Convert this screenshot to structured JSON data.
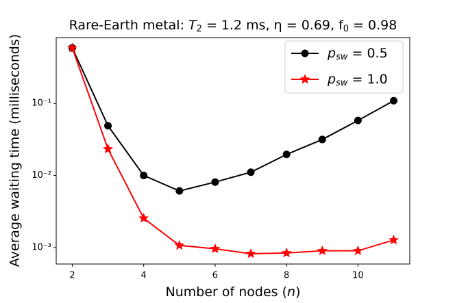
{
  "chart_data": {
    "type": "line",
    "title": [
      "Rare-Earth metal: ",
      "T",
      "2",
      " = 1.2 ms, η = 0.69, f",
      "0",
      " = 0.98"
    ],
    "x_label": [
      "Number of nodes (",
      "n",
      ")"
    ],
    "y_label": "Average waiting time (milliseconds)",
    "x": [
      2,
      3,
      4,
      5,
      6,
      7,
      8,
      9,
      10,
      11
    ],
    "series": [
      {
        "name": [
          "p",
          "sw",
          " = 0.5"
        ],
        "color": "#000000",
        "marker": "circle",
        "values": [
          0.59,
          0.049,
          0.01,
          0.0061,
          0.0081,
          0.0111,
          0.0196,
          0.0316,
          0.058,
          0.109
        ]
      },
      {
        "name": [
          "p",
          "sw",
          " = 1.0"
        ],
        "color": "#ff0000",
        "marker": "star",
        "values": [
          0.59,
          0.0233,
          0.00255,
          0.00107,
          0.00096,
          0.00082,
          0.00084,
          0.0009,
          0.0009,
          0.00127
        ]
      }
    ],
    "xlim": [
      1.55,
      11.45
    ],
    "xticks": [
      2,
      4,
      6,
      8,
      10
    ],
    "ylim": [
      0.00059,
      0.82
    ],
    "y_scale": "log",
    "yticks": [
      {
        "value": 0.001,
        "label": "10⁻³"
      },
      {
        "value": 0.01,
        "label": "10⁻²"
      },
      {
        "value": 0.1,
        "label": "10⁻¹"
      }
    ],
    "legend": "upper right"
  }
}
